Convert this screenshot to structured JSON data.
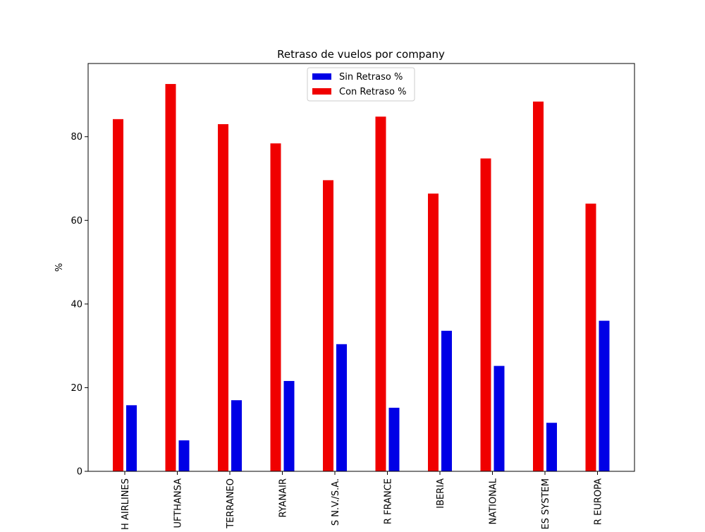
{
  "chart_data": {
    "type": "bar",
    "title": "Retraso de vuelos por company",
    "xlabel": "",
    "ylabel": "%",
    "ylim": [
      0,
      97.5
    ],
    "yticks": [
      0,
      20,
      40,
      60,
      80
    ],
    "grid": false,
    "legend": "top-center",
    "categories": [
      "BRITISH AIRLINES",
      "LUFTHANSA",
      "AIR MEDITERRANEO",
      "RYANAIR",
      "AIR EUROPA LINEAS N.V./S.A.",
      "AIR FRANCE",
      "IBERIA",
      "AIR NATIONAL",
      "AIR LINES SYSTEM",
      "AIR EUROPA"
    ],
    "category_labels_visible": [
      "H AIRLINES",
      "UFTHANSA",
      "TERRANEO",
      "RYANAIR",
      "S N.V./S.A.",
      "R FRANCE",
      "IBERIA",
      "NATIONAL",
      "ES SYSTEM",
      "R EUROPA"
    ],
    "series": [
      {
        "name": "Sin Retraso %",
        "color": "#0000e6",
        "values": [
          15.8,
          7.4,
          17.0,
          21.6,
          30.4,
          15.2,
          33.6,
          25.2,
          11.6,
          36.0
        ]
      },
      {
        "name": "Con Retraso %",
        "color": "#f00000",
        "values": [
          84.2,
          92.6,
          83.0,
          78.4,
          69.6,
          84.8,
          66.4,
          74.8,
          88.4,
          64.0
        ]
      }
    ]
  }
}
